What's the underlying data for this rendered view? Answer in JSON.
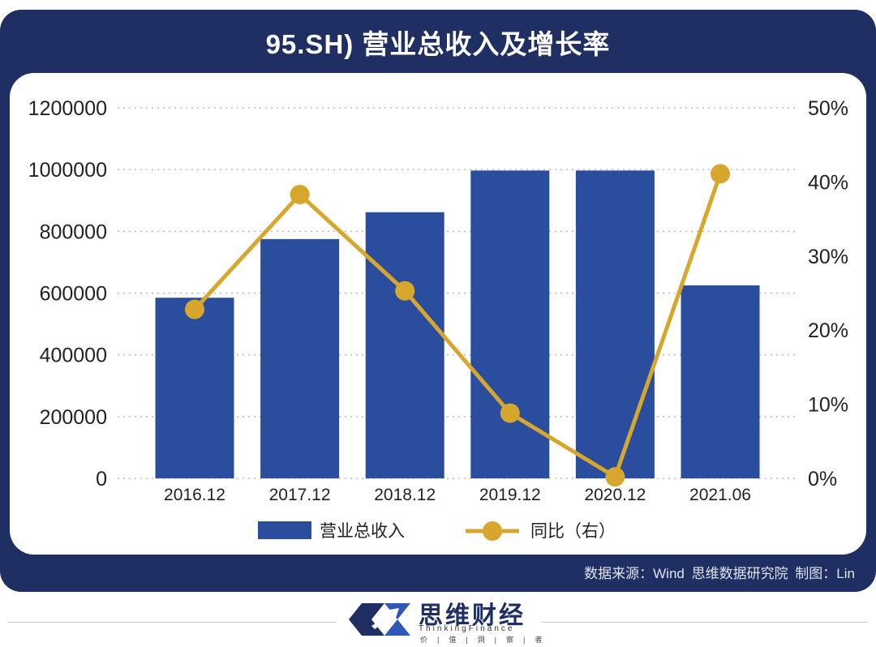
{
  "header": {
    "title": "95.SH) 营业总收入及增长率"
  },
  "chart_data": {
    "type": "bar",
    "title": "95.SH) 营业总收入及增长率",
    "categories": [
      "2016.12",
      "2017.12",
      "2018.12",
      "2019.12",
      "2020.12",
      "2021.06"
    ],
    "series": [
      {
        "name": "营业总收入",
        "type": "bar",
        "axis": "left",
        "values": [
          585000,
          775000,
          862000,
          997000,
          997000,
          625000
        ]
      },
      {
        "name": "同比（右）",
        "type": "line",
        "axis": "right",
        "values": [
          22.8,
          38.3,
          25.3,
          8.8,
          0.2,
          41.1
        ]
      }
    ],
    "y_left": {
      "ylim": [
        0,
        1200000
      ],
      "ticks": [
        "0",
        "200000",
        "400000",
        "600000",
        "800000",
        "1000000",
        "1200000"
      ]
    },
    "y_right": {
      "ylim": [
        0,
        50
      ],
      "ticks": [
        "0%",
        "10%",
        "20%",
        "30%",
        "40%",
        "50%"
      ]
    },
    "grid": "horizontal dotted",
    "legend": [
      "营业总收入",
      "同比（右）"
    ],
    "legend_position": "bottom",
    "colors": {
      "bar": "#2b4d9e",
      "line": "#d6a72c",
      "panel": "#1f2f63"
    }
  },
  "source": "数据来源：Wind  思维数据研究院    制图：Lin",
  "brand": {
    "name": "思维财经",
    "english": "ThinkingFinance",
    "slogan": "价|值|洞|察|者"
  }
}
